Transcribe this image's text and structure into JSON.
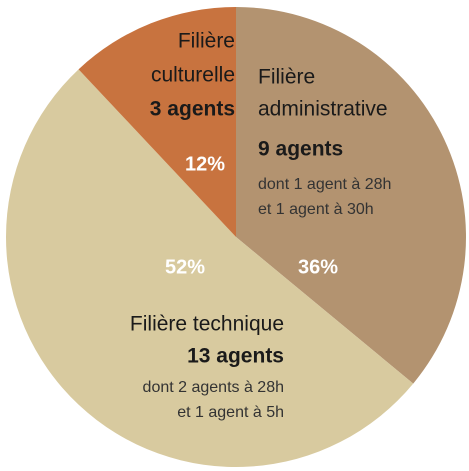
{
  "chart_data": {
    "type": "pie",
    "labels": [
      [
        "Filière",
        "administrative"
      ],
      [
        "Filière technique"
      ],
      [
        "Filière",
        "culturelle"
      ]
    ],
    "values": [
      36,
      52,
      12
    ],
    "value_labels": [
      "36%",
      "52%",
      "12%"
    ],
    "colors": [
      "#b39370",
      "#d8ca9f",
      "#c8733f"
    ],
    "agents": [
      "9 agents",
      "13 agents",
      "3 agents"
    ],
    "details": [
      [
        "dont 1 agent à 28h",
        "et 1 agent à 30h"
      ],
      [
        "dont 2 agents à 28h",
        "et 1 agent à 5h"
      ],
      []
    ]
  }
}
